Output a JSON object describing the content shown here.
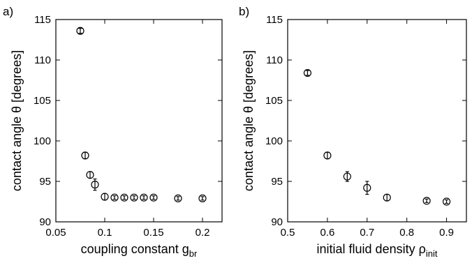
{
  "chart_data": [
    {
      "type": "scatter",
      "panel_label": "a)",
      "xlabel": "coupling constant g",
      "xlabel_sub": "br",
      "ylabel": "contact angle θ [degrees]",
      "xlim": [
        0.05,
        0.22
      ],
      "ylim": [
        90,
        115
      ],
      "xticks": [
        0.05,
        0.1,
        0.15,
        0.2
      ],
      "xtick_labels": [
        "0.05",
        "0.1",
        "0.15",
        "0.2"
      ],
      "yticks": [
        90,
        95,
        100,
        105,
        110,
        115
      ],
      "ytick_labels": [
        "90",
        "95",
        "100",
        "105",
        "110",
        "115"
      ],
      "grid": false,
      "x": [
        0.075,
        0.08,
        0.085,
        0.09,
        0.1,
        0.11,
        0.12,
        0.13,
        0.14,
        0.15,
        0.175,
        0.2
      ],
      "y": [
        113.6,
        98.2,
        95.8,
        94.6,
        93.1,
        93.0,
        93.0,
        93.0,
        93.0,
        93.0,
        92.9,
        92.9
      ],
      "yerr": [
        0.3,
        0.4,
        0.4,
        0.7,
        0.4,
        0.2,
        0.2,
        0.2,
        0.2,
        0.2,
        0.2,
        0.2
      ]
    },
    {
      "type": "scatter",
      "panel_label": "b)",
      "xlabel": "initial fluid density ρ",
      "xlabel_sub": "init",
      "ylabel": "contact angle θ [degrees]",
      "xlim": [
        0.5,
        0.95
      ],
      "ylim": [
        90,
        115
      ],
      "xticks": [
        0.5,
        0.6,
        0.7,
        0.8,
        0.9
      ],
      "xtick_labels": [
        "0.5",
        "0.6",
        "0.7",
        "0.8",
        "0.9"
      ],
      "yticks": [
        90,
        95,
        100,
        105,
        110,
        115
      ],
      "ytick_labels": [
        "90",
        "95",
        "100",
        "105",
        "110",
        "115"
      ],
      "grid": false,
      "x": [
        0.55,
        0.6,
        0.65,
        0.7,
        0.75,
        0.85,
        0.9
      ],
      "y": [
        108.4,
        98.2,
        95.6,
        94.2,
        93.0,
        92.6,
        92.5
      ],
      "yerr": [
        0.3,
        0.4,
        0.6,
        0.8,
        0.4,
        0.2,
        0.2
      ]
    }
  ]
}
